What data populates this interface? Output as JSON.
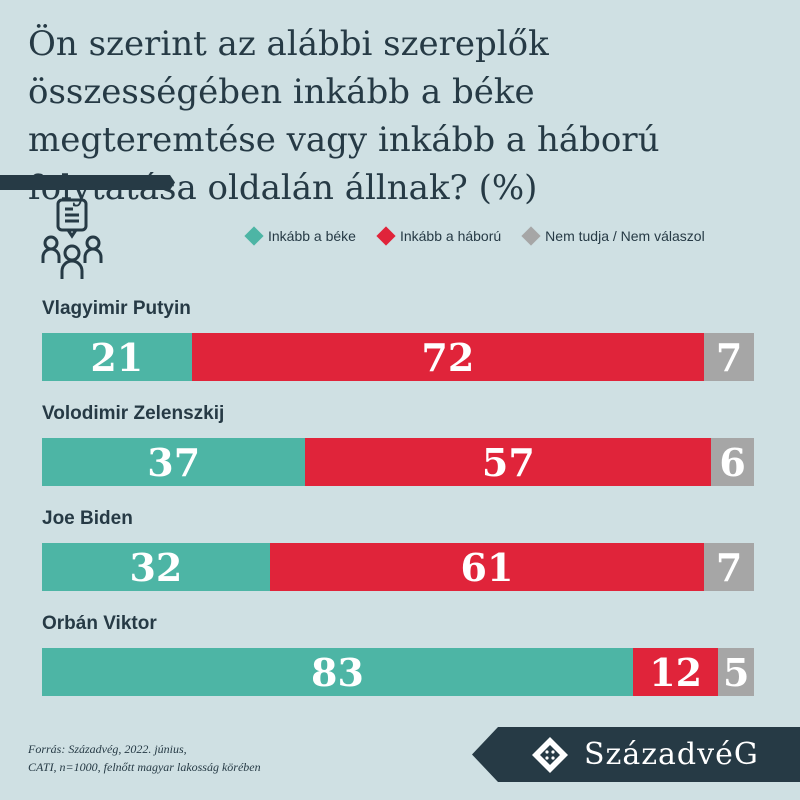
{
  "title": "Ön szerint az alábbi szereplők összességében inkább a béke megteremtése vagy inkább a háború folytatása oldalán állnak? (%)",
  "chart_data": {
    "type": "bar",
    "stacked": true,
    "orientation": "horizontal",
    "categories": [
      "Vlagyimir Putyin",
      "Volodimir Zelenszkij",
      "Joe Biden",
      "Orbán Viktor"
    ],
    "series": [
      {
        "name": "Inkább a béke",
        "color": "#4db5a5",
        "values": [
          21,
          37,
          32,
          83
        ]
      },
      {
        "name": "Inkább a háború",
        "color": "#e0243a",
        "values": [
          72,
          57,
          61,
          12
        ]
      },
      {
        "name": "Nem tudja / Nem válaszol",
        "color": "#a6a6a6",
        "values": [
          7,
          6,
          7,
          5
        ]
      }
    ],
    "legend": "top-right",
    "xlim": [
      0,
      100
    ]
  },
  "source": [
    "Forrás: Századvég, 2022. június,",
    "CATI, n=1000, felnőtt magyar lakosság körében"
  ],
  "logo": "SzázadvéG",
  "icons": {
    "header": "people-chat-icon",
    "logo": "ornament-icon"
  }
}
